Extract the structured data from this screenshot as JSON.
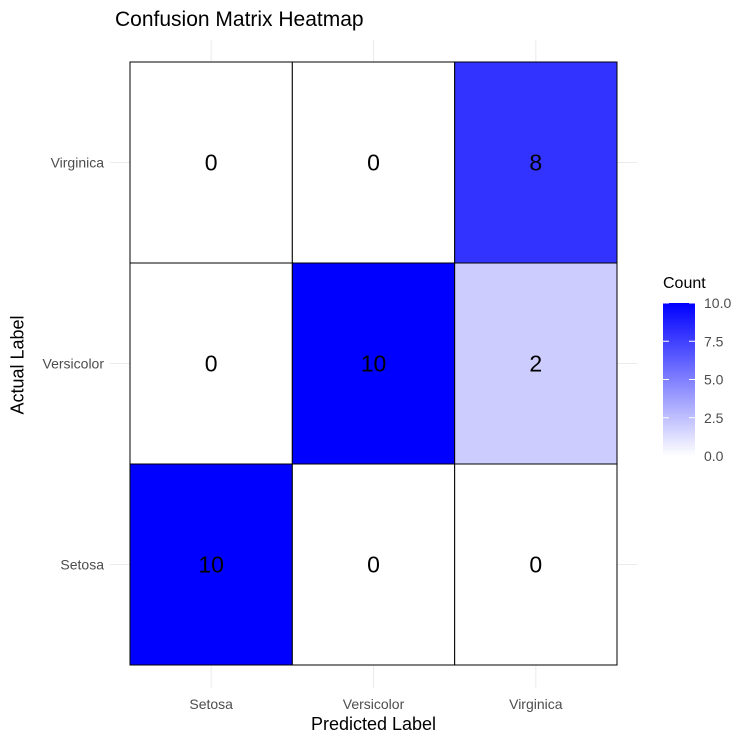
{
  "chart_data": {
    "type": "heatmap",
    "title": "Confusion Matrix Heatmap",
    "xlabel": "Predicted Label",
    "ylabel": "Actual Label",
    "x_categories": [
      "Setosa",
      "Versicolor",
      "Virginica"
    ],
    "y_categories": [
      "Setosa",
      "Versicolor",
      "Virginica"
    ],
    "values": [
      [
        10,
        0,
        0
      ],
      [
        0,
        10,
        2
      ],
      [
        0,
        0,
        8
      ]
    ],
    "value_range": [
      0,
      10
    ],
    "color_low": "#ffffff",
    "color_high": "#0000ff",
    "legend": {
      "title": "Count",
      "position": "right",
      "ticks": [
        "0.0",
        "2.5",
        "5.0",
        "7.5",
        "10.0"
      ],
      "tick_values": [
        0,
        2.5,
        5,
        7.5,
        10
      ]
    },
    "grid": true
  }
}
